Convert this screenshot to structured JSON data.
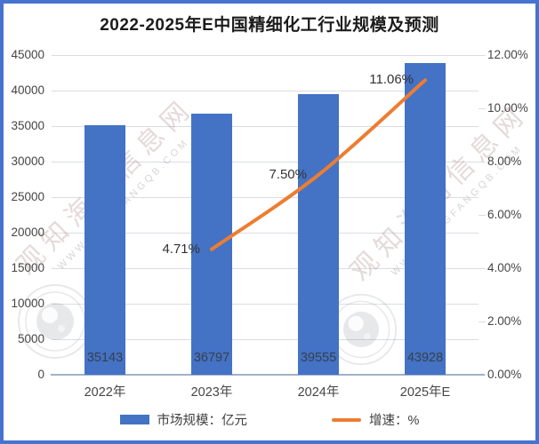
{
  "title": "2022-2025年E中国精细化工行业规模及预测",
  "colors": {
    "bar": "#4472C4",
    "line": "#ED7D31",
    "border": "#4573cf"
  },
  "legend": {
    "position": "bottom",
    "items": [
      {
        "label": "市场规模：亿元",
        "swatch": "bar",
        "color": "#4472C4"
      },
      {
        "label": "增速：%",
        "swatch": "line",
        "color": "#ED7D31"
      }
    ]
  },
  "watermark": {
    "site_name_cn": "观知海内信息网",
    "site_url": "WWW.GANGFANGQB.COM",
    "stamp_icon": "concentric-circle-eye-stamp"
  },
  "chart_data": {
    "type": "bar",
    "subtype": "combo-bar-line-dual-axis",
    "title": "2022-2025年E中国精细化工行业规模及预测",
    "categories": [
      "2022年",
      "2023年",
      "2024年",
      "2025年E"
    ],
    "series": [
      {
        "name": "市场规模：亿元",
        "kind": "bar",
        "axis": "left",
        "unit": "亿元",
        "color": "#4472C4",
        "values": [
          35143,
          36797,
          39555,
          43928
        ],
        "data_labels": [
          "35143",
          "36797",
          "39555",
          "43928"
        ]
      },
      {
        "name": "增速：%",
        "kind": "line",
        "axis": "right",
        "unit": "%",
        "color": "#ED7D31",
        "values": [
          null,
          4.71,
          7.5,
          11.06
        ],
        "data_labels": [
          null,
          "4.71%",
          "7.50%",
          "11.06%"
        ]
      }
    ],
    "left_axis": {
      "min": 0,
      "max": 45000,
      "step": 5000,
      "tick_labels": [
        "0",
        "5000",
        "10000",
        "15000",
        "20000",
        "25000",
        "30000",
        "35000",
        "40000",
        "45000"
      ]
    },
    "right_axis": {
      "min": 0,
      "max": 12,
      "step": 2,
      "tick_labels": [
        "0.00%",
        "2.00%",
        "4.00%",
        "6.00%",
        "8.00%",
        "10.00%",
        "12.00%"
      ]
    },
    "grid": true,
    "legend_position": "bottom"
  }
}
